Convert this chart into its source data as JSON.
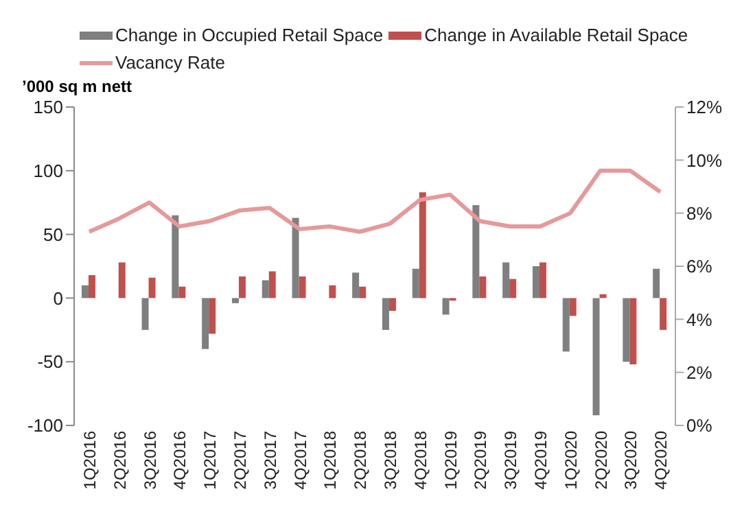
{
  "chart_data": {
    "type": "bar",
    "ylabel": "’000 sq m nett",
    "categories": [
      "1Q2016",
      "2Q2016",
      "3Q2016",
      "4Q2016",
      "1Q2017",
      "2Q2017",
      "3Q2017",
      "4Q2017",
      "1Q2018",
      "2Q2018",
      "3Q2018",
      "4Q2018",
      "1Q2019",
      "2Q2019",
      "3Q2019",
      "4Q2019",
      "1Q2020",
      "2Q2020",
      "3Q2020",
      "4Q2020"
    ],
    "series": [
      {
        "name": "Change in Occupied Retail Space",
        "color": "#7f7f7f",
        "values": [
          10,
          0,
          -25,
          65,
          -40,
          -4,
          14,
          63,
          0,
          20,
          -25,
          23,
          -13,
          73,
          28,
          25,
          -42,
          -92,
          -50,
          23
        ]
      },
      {
        "name": "Change in Available Retail Space",
        "color": "#c0504d",
        "values": [
          18,
          28,
          16,
          9,
          -28,
          17,
          21,
          17,
          10,
          9,
          -10,
          83,
          -2,
          17,
          15,
          28,
          -14,
          3,
          -52,
          -25
        ]
      },
      {
        "name": "Vacancy Rate",
        "type": "line",
        "axis": "y2",
        "color": "#e6999a",
        "marker": "none",
        "values": [
          7.3,
          7.8,
          8.4,
          7.5,
          7.7,
          8.1,
          8.2,
          7.4,
          7.5,
          7.3,
          7.6,
          8.5,
          8.7,
          7.7,
          7.5,
          7.5,
          8.0,
          9.6,
          9.6,
          8.8
        ]
      }
    ],
    "ylim": [
      -100,
      150
    ],
    "yticks": [
      -100,
      -50,
      0,
      50,
      100,
      150
    ],
    "y2lim": [
      0,
      12
    ],
    "y2ticks": [
      {
        "value": 0,
        "label": "0%"
      },
      {
        "value": 2,
        "label": "2%"
      },
      {
        "value": 4,
        "label": "4%"
      },
      {
        "value": 6,
        "label": "6%"
      },
      {
        "value": 8,
        "label": "8%"
      },
      {
        "value": 10,
        "label": "10%"
      },
      {
        "value": 12,
        "label": "12%"
      }
    ],
    "grid": false,
    "legend": "top"
  }
}
